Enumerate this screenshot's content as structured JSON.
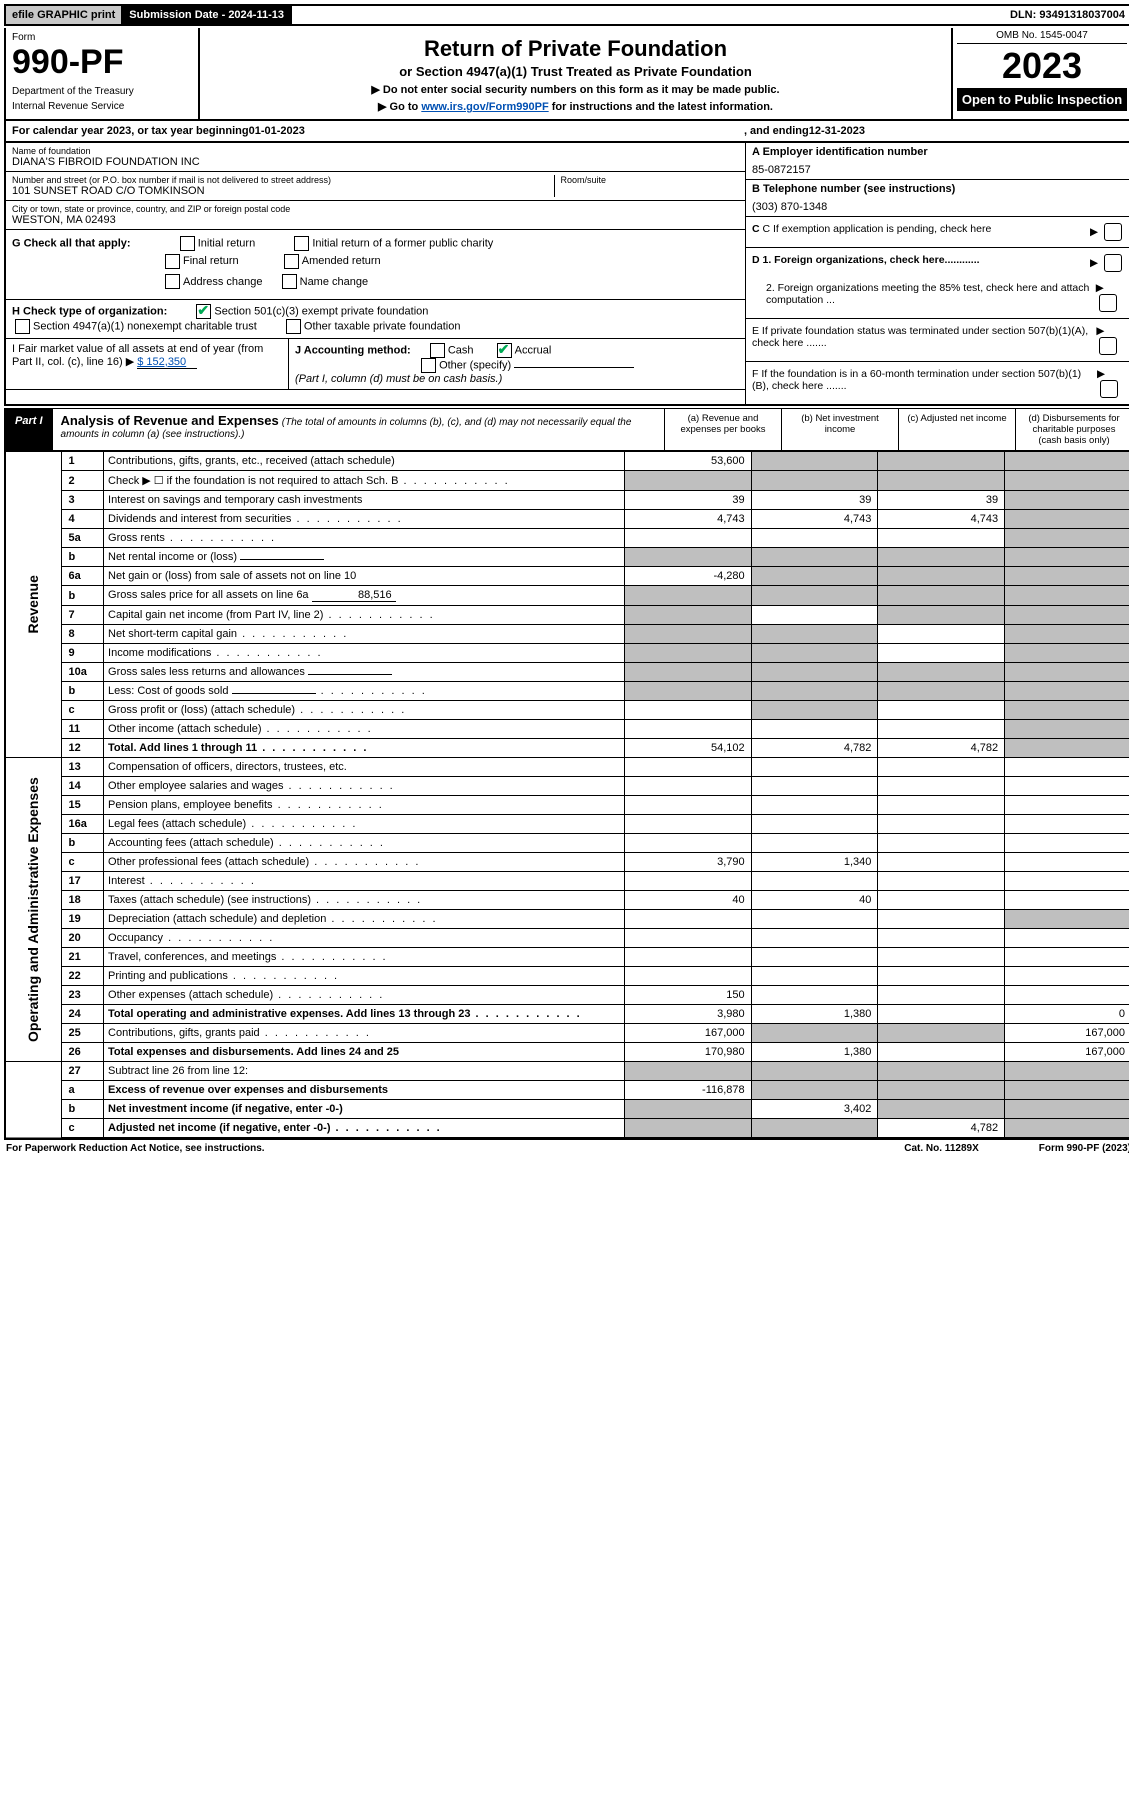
{
  "topbar": {
    "efile": "efile GRAPHIC print",
    "submission_label": "Submission Date - 2024-11-13",
    "dln": "DLN: 93491318037004"
  },
  "header": {
    "form_word": "Form",
    "form_number": "990-PF",
    "dept1": "Department of the Treasury",
    "dept2": "Internal Revenue Service",
    "title": "Return of Private Foundation",
    "subtitle": "or Section 4947(a)(1) Trust Treated as Private Foundation",
    "note1": "▶ Do not enter social security numbers on this form as it may be made public.",
    "note2_pre": "▶ Go to ",
    "note2_link": "www.irs.gov/Form990PF",
    "note2_post": " for instructions and the latest information.",
    "omb": "OMB No. 1545-0047",
    "year": "2023",
    "open": "Open to Public Inspection"
  },
  "calendar": {
    "pre": "For calendar year 2023, or tax year beginning ",
    "begin": "01-01-2023",
    "mid": ", and ending ",
    "end": "12-31-2023"
  },
  "info": {
    "name_lbl": "Name of foundation",
    "name_val": "DIANA'S FIBROID FOUNDATION INC",
    "addr_lbl": "Number and street (or P.O. box number if mail is not delivered to street address)",
    "addr_val": "101 SUNSET ROAD C/O TOMKINSON",
    "room_lbl": "Room/suite",
    "city_lbl": "City or town, state or province, country, and ZIP or foreign postal code",
    "city_val": "WESTON, MA  02493",
    "a_lbl": "A Employer identification number",
    "a_val": "85-0872157",
    "b_lbl": "B Telephone number (see instructions)",
    "b_val": "(303) 870-1348",
    "c_lbl": "C If exemption application is pending, check here",
    "d1": "D 1. Foreign organizations, check here............",
    "d2": "2. Foreign organizations meeting the 85% test, check here and attach computation ...",
    "e": "E  If private foundation status was terminated under section 507(b)(1)(A), check here .......",
    "f": "F  If the foundation is in a 60-month termination under section 507(b)(1)(B), check here .......",
    "g_lbl": "G Check all that apply:",
    "g_opts": [
      "Initial return",
      "Initial return of a former public charity",
      "Final return",
      "Amended return",
      "Address change",
      "Name change"
    ],
    "h_lbl": "H Check type of organization:",
    "h_opts": [
      "Section 501(c)(3) exempt private foundation",
      "Section 4947(a)(1) nonexempt charitable trust",
      "Other taxable private foundation"
    ],
    "i_lbl": "I Fair market value of all assets at end of year (from Part II, col. (c), line 16) ▶",
    "i_val": "$  152,350",
    "j_lbl": "J Accounting method:",
    "j_opts": [
      "Cash",
      "Accrual",
      "Other (specify)"
    ],
    "j_note": "(Part I, column (d) must be on cash basis.)"
  },
  "part1": {
    "label": "Part I",
    "title": "Analysis of Revenue and Expenses",
    "note": "(The total of amounts in columns (b), (c), and (d) may not necessarily equal the amounts in column (a) (see instructions).)",
    "cols": {
      "a": "(a)   Revenue and expenses per books",
      "b": "(b)   Net investment income",
      "c": "(c)   Adjusted net income",
      "d": "(d)   Disbursements for charitable purposes (cash basis only)"
    },
    "sections": {
      "rev": "Revenue",
      "op": "Operating and Administrative Expenses"
    }
  },
  "rows": [
    {
      "ln": "1",
      "desc": "Contributions, gifts, grants, etc., received (attach schedule)",
      "a": "53,600",
      "b": "",
      "c": "",
      "d": "",
      "grey": [
        "b",
        "c",
        "d"
      ]
    },
    {
      "ln": "2",
      "desc": "Check ▶ ☐ if the foundation is not required to attach Sch. B",
      "a": "",
      "b": "",
      "c": "",
      "d": "",
      "grey": [
        "a",
        "b",
        "c",
        "d"
      ],
      "dots": true
    },
    {
      "ln": "3",
      "desc": "Interest on savings and temporary cash investments",
      "a": "39",
      "b": "39",
      "c": "39",
      "d": "",
      "grey": [
        "d"
      ]
    },
    {
      "ln": "4",
      "desc": "Dividends and interest from securities",
      "a": "4,743",
      "b": "4,743",
      "c": "4,743",
      "d": "",
      "grey": [
        "d"
      ],
      "dots": true
    },
    {
      "ln": "5a",
      "desc": "Gross rents",
      "a": "",
      "b": "",
      "c": "",
      "d": "",
      "grey": [
        "d"
      ],
      "dots": true
    },
    {
      "ln": "b",
      "desc": "Net rental income or (loss)",
      "a": "",
      "b": "",
      "c": "",
      "d": "",
      "grey": [
        "a",
        "b",
        "c",
        "d"
      ],
      "inline": true
    },
    {
      "ln": "6a",
      "desc": "Net gain or (loss) from sale of assets not on line 10",
      "a": "-4,280",
      "b": "",
      "c": "",
      "d": "",
      "grey": [
        "b",
        "c",
        "d"
      ]
    },
    {
      "ln": "b",
      "desc": "Gross sales price for all assets on line 6a",
      "a": "",
      "b": "",
      "c": "",
      "d": "",
      "grey": [
        "a",
        "b",
        "c",
        "d"
      ],
      "inline": true,
      "inline_val": "88,516"
    },
    {
      "ln": "7",
      "desc": "Capital gain net income (from Part IV, line 2)",
      "a": "",
      "b": "",
      "c": "",
      "d": "",
      "grey": [
        "a",
        "c",
        "d"
      ],
      "dots": true
    },
    {
      "ln": "8",
      "desc": "Net short-term capital gain",
      "a": "",
      "b": "",
      "c": "",
      "d": "",
      "grey": [
        "a",
        "b",
        "d"
      ],
      "dots": true
    },
    {
      "ln": "9",
      "desc": "Income modifications",
      "a": "",
      "b": "",
      "c": "",
      "d": "",
      "grey": [
        "a",
        "b",
        "d"
      ],
      "dots": true
    },
    {
      "ln": "10a",
      "desc": "Gross sales less returns and allowances",
      "a": "",
      "b": "",
      "c": "",
      "d": "",
      "grey": [
        "a",
        "b",
        "c",
        "d"
      ],
      "inline": true
    },
    {
      "ln": "b",
      "desc": "Less: Cost of goods sold",
      "a": "",
      "b": "",
      "c": "",
      "d": "",
      "grey": [
        "a",
        "b",
        "c",
        "d"
      ],
      "inline": true,
      "dots": true
    },
    {
      "ln": "c",
      "desc": "Gross profit or (loss) (attach schedule)",
      "a": "",
      "b": "",
      "c": "",
      "d": "",
      "grey": [
        "b",
        "d"
      ],
      "dots": true
    },
    {
      "ln": "11",
      "desc": "Other income (attach schedule)",
      "a": "",
      "b": "",
      "c": "",
      "d": "",
      "grey": [
        "d"
      ],
      "dots": true
    },
    {
      "ln": "12",
      "desc": "Total. Add lines 1 through 11",
      "a": "54,102",
      "b": "4,782",
      "c": "4,782",
      "d": "",
      "grey": [
        "d"
      ],
      "bold": true,
      "dots": true
    },
    {
      "ln": "13",
      "desc": "Compensation of officers, directors, trustees, etc.",
      "a": "",
      "b": "",
      "c": "",
      "d": ""
    },
    {
      "ln": "14",
      "desc": "Other employee salaries and wages",
      "a": "",
      "b": "",
      "c": "",
      "d": "",
      "dots": true
    },
    {
      "ln": "15",
      "desc": "Pension plans, employee benefits",
      "a": "",
      "b": "",
      "c": "",
      "d": "",
      "dots": true
    },
    {
      "ln": "16a",
      "desc": "Legal fees (attach schedule)",
      "a": "",
      "b": "",
      "c": "",
      "d": "",
      "dots": true
    },
    {
      "ln": "b",
      "desc": "Accounting fees (attach schedule)",
      "a": "",
      "b": "",
      "c": "",
      "d": "",
      "dots": true
    },
    {
      "ln": "c",
      "desc": "Other professional fees (attach schedule)",
      "a": "3,790",
      "b": "1,340",
      "c": "",
      "d": "",
      "dots": true
    },
    {
      "ln": "17",
      "desc": "Interest",
      "a": "",
      "b": "",
      "c": "",
      "d": "",
      "dots": true
    },
    {
      "ln": "18",
      "desc": "Taxes (attach schedule) (see instructions)",
      "a": "40",
      "b": "40",
      "c": "",
      "d": "",
      "dots": true
    },
    {
      "ln": "19",
      "desc": "Depreciation (attach schedule) and depletion",
      "a": "",
      "b": "",
      "c": "",
      "d": "",
      "grey": [
        "d"
      ],
      "dots": true
    },
    {
      "ln": "20",
      "desc": "Occupancy",
      "a": "",
      "b": "",
      "c": "",
      "d": "",
      "dots": true
    },
    {
      "ln": "21",
      "desc": "Travel, conferences, and meetings",
      "a": "",
      "b": "",
      "c": "",
      "d": "",
      "dots": true
    },
    {
      "ln": "22",
      "desc": "Printing and publications",
      "a": "",
      "b": "",
      "c": "",
      "d": "",
      "dots": true
    },
    {
      "ln": "23",
      "desc": "Other expenses (attach schedule)",
      "a": "150",
      "b": "",
      "c": "",
      "d": "",
      "dots": true
    },
    {
      "ln": "24",
      "desc": "Total operating and administrative expenses. Add lines 13 through 23",
      "a": "3,980",
      "b": "1,380",
      "c": "",
      "d": "0",
      "bold": true,
      "dots": true
    },
    {
      "ln": "25",
      "desc": "Contributions, gifts, grants paid",
      "a": "167,000",
      "b": "",
      "c": "",
      "d": "167,000",
      "grey": [
        "b",
        "c"
      ],
      "dots": true
    },
    {
      "ln": "26",
      "desc": "Total expenses and disbursements. Add lines 24 and 25",
      "a": "170,980",
      "b": "1,380",
      "c": "",
      "d": "167,000",
      "bold": true
    },
    {
      "ln": "27",
      "desc": "Subtract line 26 from line 12:",
      "a": "",
      "b": "",
      "c": "",
      "d": "",
      "grey": [
        "a",
        "b",
        "c",
        "d"
      ]
    },
    {
      "ln": "a",
      "desc": "Excess of revenue over expenses and disbursements",
      "a": "-116,878",
      "b": "",
      "c": "",
      "d": "",
      "grey": [
        "b",
        "c",
        "d"
      ],
      "bold": true
    },
    {
      "ln": "b",
      "desc": "Net investment income (if negative, enter -0-)",
      "a": "",
      "b": "3,402",
      "c": "",
      "d": "",
      "grey": [
        "a",
        "c",
        "d"
      ],
      "bold": true
    },
    {
      "ln": "c",
      "desc": "Adjusted net income (if negative, enter -0-)",
      "a": "",
      "b": "",
      "c": "4,782",
      "d": "",
      "grey": [
        "a",
        "b",
        "d"
      ],
      "bold": true,
      "dots": true
    }
  ],
  "footer": {
    "left": "For Paperwork Reduction Act Notice, see instructions.",
    "mid": "Cat. No. 11289X",
    "right": "Form 990-PF (2023)"
  },
  "colors": {
    "grey_cell": "#bfbfbf",
    "link": "#0050b3",
    "check": "#00aa55"
  }
}
